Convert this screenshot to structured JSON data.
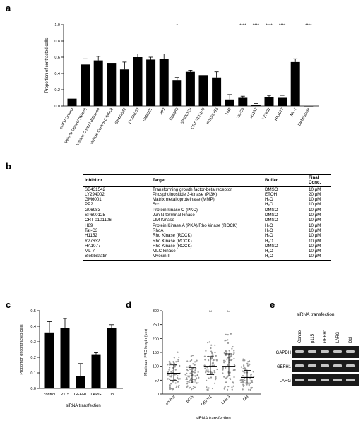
{
  "panels": {
    "a": "a",
    "b": "b",
    "c": "c",
    "d": "d",
    "e": "e"
  },
  "chart_data": [
    {
      "id": "a",
      "type": "bar",
      "ylabel": "Proportion of contracted cells",
      "ylim": [
        0,
        1.0
      ],
      "yticks": [
        "0.0",
        "0.2",
        "0.4",
        "0.6",
        "0.8",
        "1.0"
      ],
      "categories": [
        "eGFP Control",
        "Vehicle Control (Water)",
        "Vehicle Control (Ethanol)",
        "Vehicle Control (DMSO)",
        "SB431542",
        "LY294002",
        "GM6001",
        "PP2",
        "G06983",
        "SP600125",
        "CRT 0101106",
        "PD169393",
        "H89",
        "Tat-C3",
        "H1152",
        "Y27632",
        "HA1077",
        "ML-7",
        "Blebbistatin"
      ],
      "values": [
        0.09,
        0.51,
        0.56,
        0.53,
        0.45,
        0.6,
        0.57,
        0.58,
        0.32,
        0.42,
        0.38,
        0.35,
        0.08,
        0.1,
        0.01,
        0.11,
        0.1,
        0.54,
        0.0
      ],
      "errors": [
        0.0,
        0.07,
        0.05,
        0.0,
        0.09,
        0.04,
        0.03,
        0.06,
        0.03,
        0.02,
        0.0,
        0.07,
        0.06,
        0.02,
        0.02,
        0.02,
        0.03,
        0.04,
        0.0
      ],
      "significance": [
        "",
        "",
        "",
        "",
        "",
        "",
        "",
        "",
        "*",
        "",
        "",
        "",
        "",
        "****",
        "****",
        "****",
        "****",
        "",
        "****"
      ]
    },
    {
      "id": "c",
      "type": "bar",
      "ylabel": "Proportion of contracted cells",
      "xlabel": "siRNA transfection",
      "ylim": [
        0,
        0.5
      ],
      "yticks": [
        "0.0",
        "0.1",
        "0.2",
        "0.3",
        "0.4",
        "0.5"
      ],
      "categories": [
        "control",
        "P115",
        "GEFH1",
        "LARG",
        "Dbl"
      ],
      "values": [
        0.36,
        0.39,
        0.08,
        0.22,
        0.39
      ],
      "errors": [
        0.07,
        0.06,
        0.08,
        0.01,
        0.02
      ]
    },
    {
      "id": "d",
      "type": "scatter",
      "ylabel": "Maximum FRC length (um)",
      "xlabel": "siRNA transfection",
      "ylim": [
        0,
        300
      ],
      "yticks": [
        "0",
        "50",
        "100",
        "150",
        "200",
        "250",
        "300"
      ],
      "categories": [
        "control",
        "p115",
        "GEFH1",
        "LARG",
        "Dbl"
      ],
      "median": [
        75,
        65,
        100,
        100,
        60
      ],
      "q1": [
        50,
        40,
        70,
        65,
        40
      ],
      "q3": [
        105,
        95,
        135,
        145,
        85
      ],
      "max": [
        160,
        165,
        215,
        240,
        160
      ],
      "significance": [
        "",
        "",
        "**",
        "**",
        ""
      ]
    }
  ],
  "table": {
    "headers": [
      "Inhibitor",
      "Target",
      "Buffer",
      "Final Conc."
    ],
    "rows": [
      [
        "SB431542",
        "Transforming growth factor-beta receptor",
        "DMSO",
        "10 μM"
      ],
      [
        "LY294002",
        "Phosphoinositide 3-kinase (PI3K)",
        "ETOH",
        "20 μM"
      ],
      [
        "GM6001",
        "Matrix metalloproteinase (MMP)",
        "H₂O",
        "10 μM"
      ],
      [
        "PP2",
        "Src",
        "H₂O",
        "10 μM"
      ],
      [
        "G06983",
        "Protein kinase C (PKC)",
        "DMSO",
        "10 μM"
      ],
      [
        "SP600125",
        "Jun N-terminal kinase",
        "DMSO",
        "10 μM"
      ],
      [
        "CRT 0101106",
        "LIM Kinase",
        "DMSO",
        "10 μM"
      ],
      [
        "H89",
        "Protein Kinase A (PKA)/Rho kinase (ROCK)",
        "H₂O",
        "10 μM"
      ],
      [
        "Tat-C3",
        "RhoA",
        "H₂O",
        "10 μM"
      ],
      [
        "H1152",
        "Rho Kinase (ROCK)",
        "H₂O",
        "10 μM"
      ],
      [
        "Y27632",
        "Rho Kinase (ROCK)",
        "H₂O",
        "10 μM"
      ],
      [
        "HA1077",
        "Rho Kinase (ROCK)",
        "DMSO",
        "10 μM"
      ],
      [
        "ML-7",
        "MLC kinase",
        "H₂O",
        "10 μM"
      ],
      [
        "Blebbistatin",
        "Myosin II",
        "H₂O",
        "10 μM"
      ]
    ]
  },
  "gel": {
    "title": "siRNA transfection",
    "lanes": [
      "Control",
      "p115",
      "GEFH1",
      "LARG",
      "Dbl"
    ],
    "rows": [
      "GAPDH",
      "GEFH1",
      "LARG"
    ]
  }
}
